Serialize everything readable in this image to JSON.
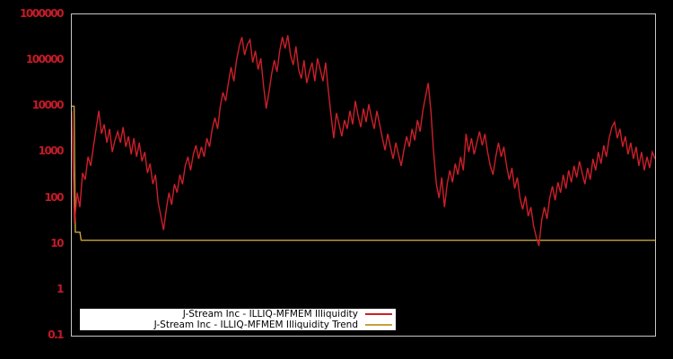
{
  "chart": {
    "background_color": "#000000",
    "frame_color": "#c6c6c6",
    "axis_label_color": "#c41a28",
    "series_color": "#cd1f2a",
    "trend_color": "#c9a03c",
    "legend_background": "#ffffff",
    "legend_text_color": "#000000"
  },
  "chart_data": {
    "type": "line",
    "title": "",
    "xlabel": "",
    "ylabel": "",
    "y_scale": "log",
    "ylim": [
      0.1,
      1000000
    ],
    "y_tick_labels": [
      "1000000",
      "100000",
      "10000",
      "1000",
      "100",
      "10",
      "1",
      "0.1"
    ],
    "x_tick_labels": [],
    "grid": false,
    "legend_position": "bottom-left-inside",
    "series": [
      {
        "name": "J-Stream Inc - ILLIQ-MFMEM Illiquidity",
        "color_key": "series_color",
        "values": [
          7900,
          28,
          130,
          63,
          350,
          250,
          790,
          500,
          1300,
          3200,
          7900,
          2500,
          4000,
          1600,
          3200,
          1000,
          1800,
          2800,
          1600,
          3500,
          1300,
          2200,
          890,
          2000,
          790,
          1600,
          630,
          1000,
          350,
          560,
          200,
          320,
          79,
          40,
          20,
          56,
          130,
          71,
          200,
          130,
          320,
          200,
          500,
          790,
          400,
          890,
          1400,
          710,
          1300,
          790,
          2000,
          1300,
          3200,
          5600,
          3200,
          10000,
          20000,
          13000,
          32000,
          71000,
          35000,
          100000,
          200000,
          320000,
          130000,
          220000,
          280000,
          89000,
          160000,
          63000,
          110000,
          28000,
          8900,
          20000,
          50000,
          100000,
          56000,
          160000,
          320000,
          180000,
          350000,
          130000,
          79000,
          200000,
          63000,
          40000,
          100000,
          32000,
          56000,
          89000,
          35000,
          110000,
          63000,
          35000,
          89000,
          22000,
          6300,
          2000,
          7100,
          4000,
          2200,
          5000,
          3200,
          7900,
          4000,
          13000,
          6300,
          3500,
          8900,
          4500,
          11000,
          5600,
          3200,
          7900,
          4000,
          2000,
          1100,
          2500,
          1300,
          710,
          1600,
          890,
          500,
          1100,
          2200,
          1300,
          3200,
          1800,
          5000,
          2800,
          7900,
          16000,
          32000,
          7900,
          1000,
          200,
          100,
          280,
          63,
          200,
          400,
          220,
          560,
          320,
          790,
          400,
          2500,
          1000,
          2000,
          890,
          1600,
          2800,
          1400,
          2500,
          1000,
          500,
          320,
          790,
          1600,
          790,
          1300,
          500,
          250,
          450,
          160,
          280,
          100,
          56,
          110,
          40,
          63,
          25,
          14,
          9,
          32,
          63,
          35,
          100,
          180,
          89,
          220,
          130,
          320,
          160,
          400,
          220,
          500,
          280,
          630,
          350,
          200,
          450,
          250,
          710,
          400,
          1000,
          560,
          1400,
          790,
          2000,
          3500,
          4500,
          2000,
          3200,
          1300,
          2200,
          890,
          1600,
          710,
          1300,
          500,
          1000,
          400,
          790,
          450,
          1000,
          710
        ]
      },
      {
        "name": "J-Stream Inc - ILLIQ-MFMEM Illiquidity Trend",
        "color_key": "trend_color",
        "points_x_fraction_value": [
          [
            0.0,
            10000
          ],
          [
            0.004,
            10000
          ],
          [
            0.006,
            18
          ],
          [
            0.014,
            18
          ],
          [
            0.016,
            12
          ],
          [
            1.0,
            12
          ]
        ]
      }
    ]
  }
}
